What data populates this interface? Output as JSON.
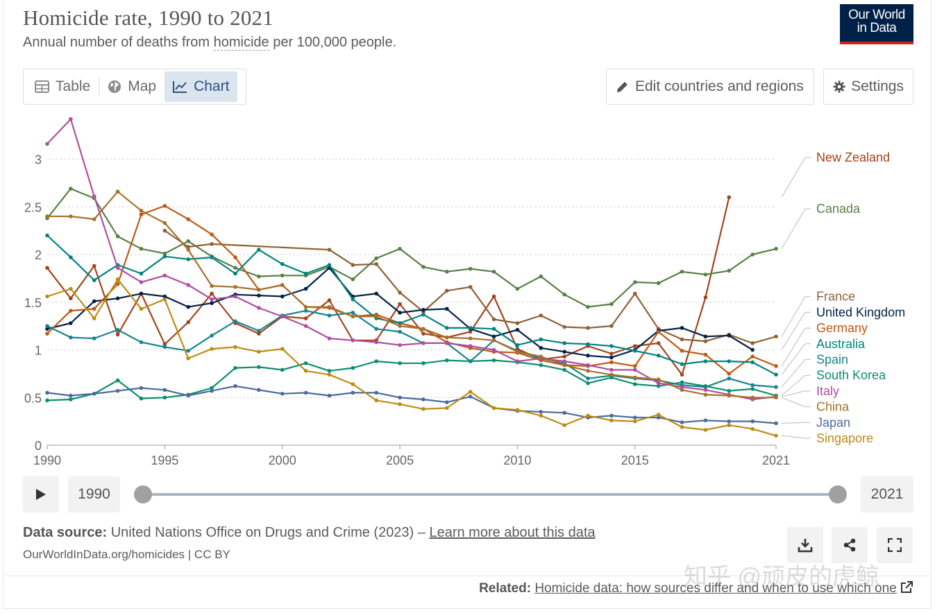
{
  "header": {
    "title": "Homicide rate, 1990 to 2021",
    "subtitle_prefix": "Annual number of deaths from ",
    "subtitle_link": "homicide",
    "subtitle_suffix": " per 100,000 people.",
    "logo_line1": "Our World",
    "logo_line2": "in Data"
  },
  "tabs": [
    {
      "label": "Table",
      "icon": "table-icon"
    },
    {
      "label": "Map",
      "icon": "globe-icon"
    },
    {
      "label": "Chart",
      "icon": "line-chart-icon"
    }
  ],
  "toolbar": {
    "edit_label": "Edit countries and regions",
    "settings_label": "Settings"
  },
  "timeline": {
    "start": "1990",
    "end": "2021",
    "play_icon": "play-icon"
  },
  "footer": {
    "source_label": "Data source:",
    "source_text": " United Nations Office on Drugs and Crime (2023) – ",
    "source_link": "Learn more about this data",
    "credit": "OurWorldInData.org/homicides | CC BY",
    "related_label": "Related:",
    "related_link": "Homicide data: how sources differ and when to use which one",
    "watermark": "知乎 @顽皮的虎鲸"
  },
  "colors": {
    "brand": "#002147",
    "brand_accent": "#ce261e",
    "active_tab_bg": "#dbe5f0"
  },
  "chart_data": {
    "type": "line",
    "title": "Homicide rate, 1990 to 2021",
    "xlabel": "",
    "ylabel": "",
    "xlim": [
      1990,
      2021
    ],
    "ylim": [
      0,
      3.2
    ],
    "x_ticks": [
      "1990",
      "1995",
      "2000",
      "2005",
      "2010",
      "2015",
      "2021"
    ],
    "y_ticks": [
      "0",
      "0.5",
      "1",
      "1.5",
      "2",
      "2.5",
      "3"
    ],
    "grid": "horizontal dashed",
    "legend": "right, line labels",
    "series": [
      {
        "name": "New Zealand",
        "color": "#a2441c",
        "x": [
          1990,
          1991,
          1992,
          1993,
          1994,
          1995,
          1996,
          1997,
          1998,
          1999,
          2000,
          2001,
          2002,
          2003,
          2004,
          2005,
          2006,
          2007,
          2008,
          2009,
          2010,
          2011,
          2012,
          2013,
          2014,
          2015,
          2016,
          2017,
          2018,
          2019
        ],
        "values": [
          1.86,
          1.54,
          1.88,
          1.16,
          1.59,
          1.06,
          1.29,
          1.59,
          1.28,
          1.17,
          1.35,
          1.33,
          1.52,
          1.1,
          1.1,
          1.48,
          1.17,
          1.13,
          1.19,
          1.56,
          1.01,
          0.9,
          0.93,
          1.04,
          0.96,
          1.04,
          1.07,
          0.74,
          1.55,
          2.6
        ]
      },
      {
        "name": "Canada",
        "color": "#578145",
        "x": [
          1990,
          1991,
          1992,
          1993,
          1994,
          1995,
          1996,
          1997,
          1998,
          1999,
          2000,
          2001,
          2002,
          2003,
          2004,
          2005,
          2006,
          2007,
          2008,
          2009,
          2010,
          2011,
          2012,
          2013,
          2014,
          2015,
          2016,
          2017,
          2018,
          2019,
          2020,
          2021
        ],
        "values": [
          2.38,
          2.69,
          2.59,
          2.19,
          2.06,
          2.01,
          2.14,
          1.98,
          1.86,
          1.77,
          1.78,
          1.78,
          1.87,
          1.74,
          1.96,
          2.06,
          1.87,
          1.82,
          1.85,
          1.82,
          1.64,
          1.77,
          1.58,
          1.45,
          1.48,
          1.71,
          1.7,
          1.82,
          1.79,
          1.83,
          2.0,
          2.06
        ]
      },
      {
        "name": "France",
        "color": "#8f6135",
        "x": [
          1995,
          1996,
          1997,
          2002,
          2003,
          2004,
          2005,
          2006,
          2007,
          2008,
          2009,
          2010,
          2011,
          2012,
          2013,
          2014,
          2015,
          2016,
          2017,
          2018,
          2019,
          2020,
          2021
        ],
        "values": [
          2.25,
          2.08,
          2.11,
          2.05,
          1.89,
          1.9,
          1.6,
          1.4,
          1.62,
          1.66,
          1.32,
          1.28,
          1.36,
          1.24,
          1.23,
          1.25,
          1.59,
          1.22,
          1.11,
          1.09,
          1.16,
          1.07,
          1.14
        ]
      },
      {
        "name": "United Kingdom",
        "color": "#002147",
        "x": [
          1990,
          1991,
          1992,
          1993,
          1994,
          1995,
          1996,
          1997,
          1998,
          1999,
          2000,
          2001,
          2002,
          2003,
          2004,
          2005,
          2006,
          2007,
          2008,
          2009,
          2010,
          2011,
          2012,
          2013,
          2014,
          2015,
          2016,
          2017,
          2018,
          2019,
          2020
        ],
        "values": [
          1.22,
          1.28,
          1.51,
          1.54,
          1.59,
          1.56,
          1.45,
          1.49,
          1.58,
          1.57,
          1.56,
          1.64,
          1.86,
          1.56,
          1.59,
          1.39,
          1.42,
          1.43,
          1.22,
          1.14,
          1.21,
          1.02,
          0.98,
          0.94,
          0.92,
          1.0,
          1.2,
          1.23,
          1.14,
          1.15,
          1.0
        ]
      },
      {
        "name": "Germany",
        "color": "#be5915",
        "x": [
          1990,
          1991,
          1992,
          1993,
          1994,
          1995,
          1996,
          1997,
          1998,
          1999,
          2000,
          2001,
          2002,
          2003,
          2004,
          2005,
          2006,
          2007,
          2008,
          2009,
          2010,
          2011,
          2012,
          2013,
          2014,
          2015,
          2016,
          2017,
          2018,
          2019,
          2020,
          2021
        ],
        "values": [
          1.17,
          1.41,
          1.43,
          1.69,
          2.42,
          2.51,
          2.37,
          2.21,
          1.97,
          1.63,
          1.68,
          1.45,
          1.44,
          1.35,
          1.37,
          1.28,
          1.22,
          1.08,
          1.02,
          0.98,
          0.97,
          0.89,
          0.84,
          0.83,
          0.87,
          0.83,
          1.19,
          0.99,
          0.95,
          0.75,
          0.93,
          0.83
        ]
      },
      {
        "name": "Australia",
        "color": "#00847e",
        "x": [
          1990,
          1991,
          1992,
          1993,
          1994,
          1995,
          1996,
          1997,
          1998,
          1999,
          2000,
          2001,
          2002,
          2003,
          2004,
          2005,
          2006,
          2007,
          2008,
          2009,
          2010,
          2011,
          2012,
          2013,
          2014,
          2015,
          2016,
          2017,
          2018,
          2019,
          2020,
          2021
        ],
        "values": [
          2.2,
          1.97,
          1.73,
          1.89,
          1.8,
          1.98,
          1.95,
          1.97,
          1.8,
          2.05,
          1.9,
          1.8,
          1.89,
          1.53,
          1.33,
          1.28,
          1.37,
          1.23,
          1.23,
          1.22,
          1.05,
          1.11,
          1.07,
          1.06,
          1.04,
          0.99,
          0.94,
          0.85,
          0.88,
          0.88,
          0.87,
          0.74
        ]
      },
      {
        "name": "Spain",
        "color": "#18848e",
        "x": [
          1990,
          1991,
          1992,
          1993,
          1994,
          1995,
          1996,
          1997,
          1998,
          1999,
          2000,
          2001,
          2002,
          2003,
          2004,
          2005,
          2006,
          2007,
          2008,
          2009,
          2010,
          2011,
          2012,
          2013,
          2014,
          2015,
          2016,
          2017,
          2018,
          2019,
          2020,
          2021
        ],
        "values": [
          1.25,
          1.13,
          1.12,
          1.21,
          1.08,
          1.03,
          0.99,
          1.15,
          1.3,
          1.2,
          1.36,
          1.41,
          1.36,
          1.39,
          1.22,
          1.19,
          1.07,
          1.07,
          0.88,
          1.1,
          0.99,
          0.91,
          0.86,
          0.7,
          0.73,
          0.7,
          0.68,
          0.63,
          0.61,
          0.7,
          0.63,
          0.61
        ]
      },
      {
        "name": "South Korea",
        "color": "#0b8e6f",
        "x": [
          1990,
          1991,
          1992,
          1993,
          1994,
          1995,
          1996,
          1997,
          1998,
          1999,
          2000,
          2001,
          2002,
          2003,
          2004,
          2005,
          2006,
          2007,
          2008,
          2009,
          2010,
          2011,
          2012,
          2013,
          2014,
          2015,
          2016,
          2017,
          2018,
          2019,
          2020,
          2021
        ],
        "values": [
          0.47,
          0.48,
          0.54,
          0.68,
          0.49,
          0.5,
          0.53,
          0.6,
          0.81,
          0.82,
          0.79,
          0.86,
          0.78,
          0.81,
          0.88,
          0.86,
          0.86,
          0.89,
          0.88,
          0.89,
          0.87,
          0.84,
          0.79,
          0.65,
          0.71,
          0.64,
          0.62,
          0.66,
          0.62,
          0.57,
          0.59,
          0.52
        ]
      },
      {
        "name": "Italy",
        "color": "#b14ea0",
        "x": [
          1990,
          1991,
          1992,
          1993,
          1994,
          1995,
          1996,
          1997,
          1998,
          1999,
          2000,
          2001,
          2002,
          2003,
          2004,
          2005,
          2006,
          2007,
          2008,
          2009,
          2010,
          2011,
          2012,
          2013,
          2014,
          2015,
          2016,
          2017,
          2018,
          2019,
          2020,
          2021
        ],
        "values": [
          3.16,
          3.42,
          2.61,
          1.86,
          1.71,
          1.78,
          1.68,
          1.53,
          1.56,
          1.44,
          1.35,
          1.25,
          1.12,
          1.1,
          1.08,
          1.05,
          1.07,
          1.07,
          1.04,
          1.0,
          0.88,
          0.91,
          0.88,
          0.84,
          0.79,
          0.79,
          0.65,
          0.61,
          0.58,
          0.53,
          0.48,
          0.51
        ]
      },
      {
        "name": "China",
        "color": "#a6712b",
        "x": [
          1990,
          1991,
          1992,
          1993,
          1994,
          1995,
          1996,
          1997,
          1998,
          1999,
          2000,
          2001,
          2002,
          2003,
          2004,
          2005,
          2006,
          2007,
          2008,
          2009,
          2010,
          2011,
          2012,
          2013,
          2014,
          2015,
          2016,
          2017,
          2018,
          2019,
          2020,
          2021
        ],
        "values": [
          2.4,
          2.4,
          2.37,
          2.66,
          2.46,
          2.33,
          2.05,
          1.67,
          1.66,
          1.63,
          1.68,
          1.45,
          1.45,
          1.35,
          1.35,
          1.25,
          1.22,
          1.13,
          1.12,
          1.1,
          0.98,
          0.93,
          0.84,
          0.78,
          0.74,
          0.71,
          0.69,
          0.58,
          0.53,
          0.52,
          0.5,
          0.5
        ]
      },
      {
        "name": "Japan",
        "color": "#4c6a9c",
        "x": [
          1990,
          1991,
          1992,
          1993,
          1994,
          1995,
          1996,
          1997,
          1998,
          1999,
          2000,
          2001,
          2002,
          2003,
          2004,
          2005,
          2006,
          2007,
          2008,
          2009,
          2010,
          2011,
          2012,
          2013,
          2014,
          2015,
          2016,
          2017,
          2018,
          2019,
          2020,
          2021
        ],
        "values": [
          0.55,
          0.52,
          0.54,
          0.57,
          0.6,
          0.58,
          0.52,
          0.57,
          0.62,
          0.58,
          0.54,
          0.55,
          0.52,
          0.55,
          0.55,
          0.5,
          0.48,
          0.45,
          0.51,
          0.39,
          0.36,
          0.35,
          0.34,
          0.29,
          0.31,
          0.29,
          0.29,
          0.24,
          0.26,
          0.25,
          0.25,
          0.23
        ]
      },
      {
        "name": "Singapore",
        "color": "#be8b14",
        "x": [
          1990,
          1991,
          1992,
          1993,
          1994,
          1995,
          1996,
          1997,
          1998,
          1999,
          2000,
          2001,
          2002,
          2003,
          2004,
          2005,
          2006,
          2007,
          2008,
          2009,
          2010,
          2011,
          2012,
          2013,
          2014,
          2015,
          2016,
          2017,
          2018,
          2019,
          2020,
          2021
        ],
        "values": [
          1.56,
          1.64,
          1.33,
          1.74,
          1.43,
          1.53,
          0.91,
          1.01,
          1.03,
          0.98,
          1.01,
          0.78,
          0.74,
          0.64,
          0.47,
          0.43,
          0.38,
          0.39,
          0.56,
          0.39,
          0.37,
          0.31,
          0.21,
          0.31,
          0.26,
          0.25,
          0.32,
          0.19,
          0.16,
          0.21,
          0.17,
          0.1
        ]
      }
    ]
  }
}
